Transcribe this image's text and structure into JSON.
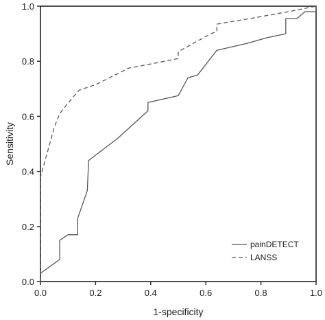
{
  "chart_data": {
    "type": "line",
    "title": "",
    "xlabel": "1-specificity",
    "ylabel": "Sensitivity",
    "xlim": [
      0,
      1
    ],
    "ylim": [
      0,
      1
    ],
    "x_ticks": [
      0,
      0.2,
      0.4,
      0.6,
      0.8,
      1
    ],
    "x_tick_labels": [
      "0.0",
      "0.2",
      "0.4",
      "0.6",
      "0.8",
      "1.0"
    ],
    "y_ticks": [
      0,
      0.2,
      0.4,
      0.6,
      0.8,
      1
    ],
    "y_tick_labels": [
      "0.0",
      "0.2",
      "0.4",
      "0.6",
      "0.8",
      "1.0"
    ],
    "grid": false,
    "legend_position": "bottom-right",
    "series": [
      {
        "name": "painDETECT",
        "style": "solid",
        "color": "#555555",
        "points": [
          [
            0.0,
            0.03
          ],
          [
            0.07,
            0.08
          ],
          [
            0.07,
            0.15
          ],
          [
            0.1,
            0.17
          ],
          [
            0.135,
            0.17
          ],
          [
            0.135,
            0.23
          ],
          [
            0.17,
            0.33
          ],
          [
            0.175,
            0.44
          ],
          [
            0.28,
            0.52
          ],
          [
            0.39,
            0.62
          ],
          [
            0.39,
            0.65
          ],
          [
            0.5,
            0.675
          ],
          [
            0.535,
            0.74
          ],
          [
            0.57,
            0.75
          ],
          [
            0.64,
            0.84
          ],
          [
            0.75,
            0.865
          ],
          [
            0.82,
            0.885
          ],
          [
            0.89,
            0.9
          ],
          [
            0.89,
            0.955
          ],
          [
            0.93,
            0.955
          ],
          [
            0.96,
            0.98
          ],
          [
            1.0,
            0.98
          ],
          [
            1.0,
            1.0
          ]
        ]
      },
      {
        "name": "LANSS",
        "style": "dashed",
        "color": "#555555",
        "points": [
          [
            0.0,
            0.0
          ],
          [
            0.0,
            0.38
          ],
          [
            0.02,
            0.45
          ],
          [
            0.05,
            0.56
          ],
          [
            0.07,
            0.61
          ],
          [
            0.11,
            0.66
          ],
          [
            0.14,
            0.695
          ],
          [
            0.2,
            0.715
          ],
          [
            0.25,
            0.74
          ],
          [
            0.32,
            0.775
          ],
          [
            0.4,
            0.79
          ],
          [
            0.5,
            0.81
          ],
          [
            0.5,
            0.835
          ],
          [
            0.6,
            0.89
          ],
          [
            0.64,
            0.91
          ],
          [
            0.64,
            0.935
          ],
          [
            0.76,
            0.955
          ],
          [
            0.9,
            0.98
          ],
          [
            1.0,
            1.0
          ]
        ]
      }
    ]
  }
}
